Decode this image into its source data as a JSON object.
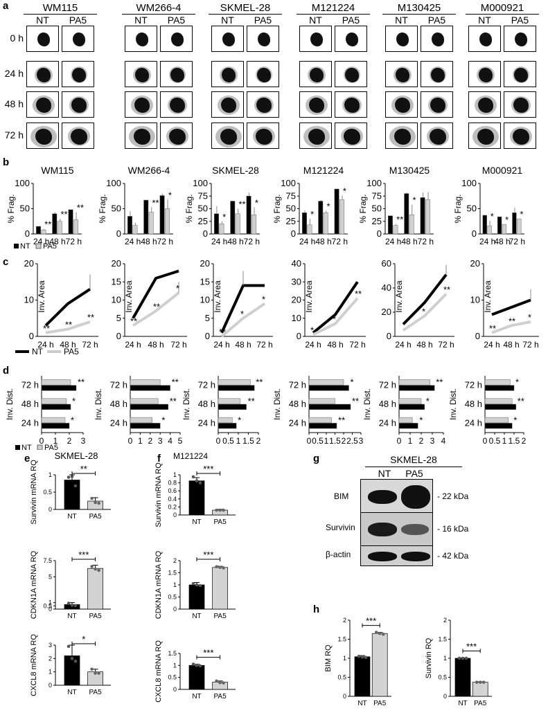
{
  "panels": {
    "a": "a",
    "b": "b",
    "c": "c",
    "d": "d",
    "e": "e",
    "f": "f",
    "g": "g",
    "h": "h"
  },
  "cell_lines": [
    "WM115",
    "WM266-4",
    "SKMEL-28",
    "M121224",
    "M130425",
    "M000921"
  ],
  "spheroid": {
    "cols": [
      "NT",
      "PA5"
    ],
    "rows": [
      "0 h",
      "24 h",
      "48 h",
      "72 h"
    ]
  },
  "frag": {
    "ylabel": "% Frag.",
    "categories": [
      "24 h",
      "48 h",
      "72 h"
    ],
    "legend": [
      "NT",
      "PA5"
    ]
  },
  "area": {
    "ylabel": "Inv. Area",
    "categories": [
      "24 h",
      "48 h",
      "72 h"
    ],
    "legend": [
      "NT",
      "PA5"
    ]
  },
  "dist": {
    "ylabel": "Inv. Dist.",
    "categories": [
      "72 h",
      "48 h",
      "24 h"
    ],
    "legend": [
      "NT",
      "PA5"
    ]
  },
  "e": {
    "title": "SKMEL-28",
    "ylabels": [
      "Survivin mRNA RQ",
      "CDKN1A mRNA RQ",
      "CXCL8 mRNA RQ"
    ]
  },
  "f": {
    "title": "M121224",
    "ylabels": [
      "Survivin mRNA RQ",
      "CDKN1A mRNA RQ",
      "CXCL8 mRNA RQ"
    ]
  },
  "g": {
    "title": "SKMEL-28",
    "cols": [
      "NT",
      "PA5"
    ],
    "rows": [
      {
        "name": "BIM",
        "kda": "- 22 kDa"
      },
      {
        "name": "Survivin",
        "kda": "- 16 kDa"
      },
      {
        "name": "β-actin",
        "kda": "- 42 kDa"
      }
    ]
  },
  "h": {
    "ylabels": [
      "BIM RQ",
      "Survivin RQ"
    ]
  },
  "chart_data": [
    {
      "id": "b-WM115",
      "type": "bar",
      "title": "WM115",
      "ylabel": "% Frag.",
      "categories": [
        "24 h",
        "48 h",
        "72 h"
      ],
      "ylim": [
        0,
        100
      ],
      "yticks": [
        0,
        50,
        100
      ],
      "series": [
        {
          "name": "NT",
          "values": [
            15,
            40,
            48
          ],
          "err": [
            0,
            3,
            0
          ]
        },
        {
          "name": "PA5",
          "values": [
            8,
            25,
            28
          ],
          "err": [
            2,
            5,
            15
          ]
        }
      ],
      "annotations": [
        "**",
        "**",
        "**"
      ]
    },
    {
      "id": "b-WM266-4",
      "type": "bar",
      "title": "WM266-4",
      "ylabel": "% Frag.",
      "categories": [
        "24 h",
        "48 h",
        "72 h"
      ],
      "ylim": [
        0,
        100
      ],
      "yticks": [
        0,
        50,
        100
      ],
      "series": [
        {
          "name": "NT",
          "values": [
            35,
            67,
            76
          ],
          "err": [
            10,
            0,
            4
          ]
        },
        {
          "name": "PA5",
          "values": [
            17,
            43,
            50
          ],
          "err": [
            5,
            10,
            18
          ]
        }
      ],
      "annotations": [
        "",
        "**",
        "*"
      ]
    },
    {
      "id": "b-SKMEL-28",
      "type": "bar",
      "title": "SKMEL-28",
      "ylabel": "% Frag.",
      "categories": [
        "24 h",
        "48 h",
        "72 h"
      ],
      "ylim": [
        0,
        100
      ],
      "yticks": [
        0,
        25,
        50,
        75,
        100
      ],
      "series": [
        {
          "name": "NT",
          "values": [
            40,
            65,
            75
          ],
          "err": [
            15,
            0,
            7
          ]
        },
        {
          "name": "PA5",
          "values": [
            20,
            40,
            38
          ],
          "err": [
            5,
            10,
            15
          ]
        }
      ],
      "annotations": [
        "*",
        "**",
        "*"
      ]
    },
    {
      "id": "b-M121224",
      "type": "bar",
      "title": "M121224",
      "ylabel": "% Frag.",
      "categories": [
        "24 h",
        "48 h",
        "72 h"
      ],
      "ylim": [
        0,
        100
      ],
      "yticks": [
        0,
        25,
        50,
        75,
        100
      ],
      "series": [
        {
          "name": "NT",
          "values": [
            42,
            65,
            89
          ],
          "err": [
            5,
            2,
            0
          ]
        },
        {
          "name": "PA5",
          "values": [
            18,
            42,
            68
          ],
          "err": [
            12,
            4,
            8
          ]
        }
      ],
      "annotations": [
        "*",
        "*",
        "*"
      ]
    },
    {
      "id": "b-M130425",
      "type": "bar",
      "title": "M130425",
      "ylabel": "% Frag.",
      "categories": [
        "24 h",
        "48 h",
        "72 h"
      ],
      "ylim": [
        0,
        100
      ],
      "yticks": [
        0,
        25,
        50,
        75,
        100
      ],
      "series": [
        {
          "name": "NT",
          "values": [
            36,
            80,
            72
          ],
          "err": [
            0,
            2,
            10
          ]
        },
        {
          "name": "PA5",
          "values": [
            17,
            38,
            68
          ],
          "err": [
            3,
            20,
            15
          ]
        }
      ],
      "annotations": [
        "**",
        "*",
        ""
      ]
    },
    {
      "id": "b-M000921",
      "type": "bar",
      "title": "M000921",
      "ylabel": "% Frag.",
      "categories": [
        "24 h",
        "48 h",
        "72 h"
      ],
      "ylim": [
        0,
        100
      ],
      "yticks": [
        0,
        50,
        100
      ],
      "series": [
        {
          "name": "NT",
          "values": [
            37,
            34,
            42
          ],
          "err": [
            0,
            0,
            10
          ]
        },
        {
          "name": "PA5",
          "values": [
            16,
            19,
            30
          ],
          "err": [
            10,
            0,
            0
          ]
        }
      ],
      "annotations": [
        "*",
        "*",
        "*"
      ]
    },
    {
      "id": "c-1",
      "type": "line",
      "ylabel": "Inv. Area",
      "categories": [
        "24 h",
        "48 h",
        "72 h"
      ],
      "ylim": [
        0,
        20
      ],
      "yticks": [
        0,
        10,
        20
      ],
      "series": [
        {
          "name": "NT",
          "values": [
            3,
            9,
            13
          ],
          "err": [
            0,
            0,
            4
          ]
        },
        {
          "name": "PA5",
          "values": [
            1,
            2,
            4
          ],
          "err": [
            0,
            0,
            0
          ]
        }
      ],
      "annotations": [
        "**",
        "**",
        "**"
      ]
    },
    {
      "id": "c-2",
      "type": "line",
      "ylabel": "Inv. Area",
      "categories": [
        "24 h",
        "48 h",
        "72 h"
      ],
      "ylim": [
        0,
        20
      ],
      "yticks": [
        0,
        5,
        10,
        15,
        20
      ],
      "series": [
        {
          "name": "NT",
          "values": [
            5,
            16,
            18
          ],
          "err": [
            0,
            0,
            0
          ]
        },
        {
          "name": "PA5",
          "values": [
            3,
            7,
            12
          ],
          "err": [
            0,
            0,
            3
          ]
        }
      ],
      "annotations": [
        "**",
        "**",
        "*"
      ]
    },
    {
      "id": "c-3",
      "type": "line",
      "ylabel": "Inv. Area",
      "categories": [
        "24 h",
        "48 h",
        "72 h"
      ],
      "ylim": [
        0,
        20
      ],
      "yticks": [
        0,
        5,
        10,
        15,
        20
      ],
      "series": [
        {
          "name": "NT",
          "values": [
            1,
            14,
            14
          ],
          "err": [
            0,
            4,
            0
          ]
        },
        {
          "name": "PA5",
          "values": [
            0,
            5,
            9
          ],
          "err": [
            0,
            0,
            0
          ]
        }
      ],
      "annotations": [
        "**",
        "*",
        "*"
      ]
    },
    {
      "id": "c-4",
      "type": "line",
      "ylabel": "Inv. Area",
      "categories": [
        "24 h",
        "48 h",
        "72 h"
      ],
      "ylim": [
        0,
        40
      ],
      "yticks": [
        0,
        10,
        20,
        30,
        40
      ],
      "series": [
        {
          "name": "NT",
          "values": [
            2,
            12,
            30
          ],
          "err": [
            0,
            0,
            0
          ]
        },
        {
          "name": "PA5",
          "values": [
            1,
            7,
            21
          ],
          "err": [
            0,
            0,
            0
          ]
        }
      ],
      "annotations": [
        "*",
        "*",
        "**"
      ]
    },
    {
      "id": "c-5",
      "type": "line",
      "ylabel": "Inv. Area",
      "categories": [
        "24 h",
        "48 h",
        "72 h"
      ],
      "ylim": [
        0,
        60
      ],
      "yticks": [
        0,
        20,
        40,
        60
      ],
      "series": [
        {
          "name": "NT",
          "values": [
            10,
            28,
            51
          ],
          "err": [
            0,
            0,
            8
          ]
        },
        {
          "name": "PA5",
          "values": [
            5,
            17,
            35
          ],
          "err": [
            0,
            0,
            0
          ]
        }
      ],
      "annotations": [
        "",
        "*",
        "**"
      ]
    },
    {
      "id": "c-6",
      "type": "line",
      "ylabel": "Inv. Area",
      "categories": [
        "24 h",
        "48 h",
        "72 h"
      ],
      "ylim": [
        0,
        20
      ],
      "yticks": [
        0,
        10,
        20
      ],
      "series": [
        {
          "name": "NT",
          "values": [
            6,
            8,
            10
          ],
          "err": [
            0,
            0,
            3
          ]
        },
        {
          "name": "PA5",
          "values": [
            1,
            3,
            4
          ],
          "err": [
            0,
            0,
            0
          ]
        }
      ],
      "annotations": [
        "**",
        "**",
        "*"
      ]
    },
    {
      "id": "d-1",
      "type": "bar",
      "orientation": "horizontal",
      "ylabel": "Inv. Dist.",
      "categories": [
        "72 h",
        "48 h",
        "24 h"
      ],
      "xlim": [
        0,
        3
      ],
      "xticks": [
        0,
        1,
        2,
        3
      ],
      "series": [
        {
          "name": "PA5",
          "values": [
            2.1,
            1.8,
            1.7
          ]
        },
        {
          "name": "NT",
          "values": [
            2.5,
            2.1,
            2.0
          ]
        }
      ],
      "annotations": [
        "**",
        "*",
        "*"
      ]
    },
    {
      "id": "d-2",
      "type": "bar",
      "orientation": "horizontal",
      "ylabel": "Inv. Dist.",
      "categories": [
        "72 h",
        "48 h",
        "24 h"
      ],
      "xlim": [
        0,
        5
      ],
      "xticks": [
        0,
        1,
        2,
        3,
        4,
        5
      ],
      "series": [
        {
          "name": "PA5",
          "values": [
            3.0,
            2.8,
            2.2
          ]
        },
        {
          "name": "NT",
          "values": [
            4.0,
            3.8,
            3.0
          ]
        }
      ],
      "annotations": [
        "**",
        "**",
        "*"
      ]
    },
    {
      "id": "d-3",
      "type": "bar",
      "orientation": "horizontal",
      "ylabel": "Inv. Dist.",
      "categories": [
        "72 h",
        "48 h",
        "24 h"
      ],
      "xlim": [
        0,
        2
      ],
      "xticks": [
        0,
        0.5,
        1,
        1.5,
        2
      ],
      "series": [
        {
          "name": "PA5",
          "values": [
            1.6,
            1.1,
            0.7
          ]
        },
        {
          "name": "NT",
          "values": [
            1.8,
            1.4,
            0.9
          ]
        }
      ],
      "annotations": [
        "**",
        "**",
        "*"
      ]
    },
    {
      "id": "d-4",
      "type": "bar",
      "orientation": "horizontal",
      "ylabel": "Inv. Dist.",
      "categories": [
        "72 h",
        "48 h",
        "24 h"
      ],
      "xlim": [
        0,
        3
      ],
      "xticks": [
        0,
        0.5,
        1,
        1.5,
        2,
        2.5,
        3
      ],
      "series": [
        {
          "name": "PA5",
          "values": [
            2.0,
            1.5,
            1.3
          ]
        },
        {
          "name": "NT",
          "values": [
            2.3,
            2.4,
            1.6
          ]
        }
      ],
      "annotations": [
        "*",
        "**",
        "**"
      ]
    },
    {
      "id": "d-5",
      "type": "bar",
      "orientation": "horizontal",
      "ylabel": "Inv. Dist.",
      "categories": [
        "72 h",
        "48 h",
        "24 h"
      ],
      "xlim": [
        0,
        4
      ],
      "xticks": [
        0,
        1,
        2,
        3,
        4
      ],
      "series": [
        {
          "name": "PA5",
          "values": [
            2.8,
            2.0,
            1.2
          ]
        },
        {
          "name": "NT",
          "values": [
            3.2,
            2.3,
            1.7
          ]
        }
      ],
      "annotations": [
        "**",
        "*",
        "*"
      ]
    },
    {
      "id": "d-6",
      "type": "bar",
      "orientation": "horizontal",
      "ylabel": "Inv. Dist.",
      "categories": [
        "72 h",
        "48 h",
        "24 h"
      ],
      "xlim": [
        0,
        2
      ],
      "xticks": [
        0,
        0.5,
        1,
        1.5,
        2
      ],
      "series": [
        {
          "name": "PA5",
          "values": [
            1.3,
            1.4,
            1.2
          ]
        },
        {
          "name": "NT",
          "values": [
            1.5,
            1.6,
            1.4
          ]
        }
      ],
      "annotations": [
        "*",
        "**",
        "*"
      ]
    },
    {
      "id": "e-survivin",
      "type": "bar",
      "ylabel": "Survivin mRNA RQ",
      "categories": [
        "NT",
        "PA5"
      ],
      "ylim": [
        0,
        1.0
      ],
      "yticks": [
        0,
        0.5,
        1
      ],
      "values": [
        0.85,
        0.24
      ],
      "err": [
        0.15,
        0.1
      ],
      "points": [
        [
          0.93,
          0.95,
          0.68
        ],
        [
          0.32,
          0.2,
          0.18
        ]
      ],
      "annotation": "**"
    },
    {
      "id": "e-cdkn1a",
      "type": "bar",
      "ylabel": "CDKN1A mRNA RQ",
      "categories": [
        "NT",
        "PA5"
      ],
      "ylim": [
        0,
        7.5
      ],
      "yticks": [
        0,
        0.5,
        1,
        5,
        7.5
      ],
      "axis_break": true,
      "values": [
        0.7,
        6.3
      ],
      "err": [
        0.3,
        0.5
      ],
      "points": [
        [
          0.9,
          0.6,
          0.55
        ],
        [
          6.6,
          6.2,
          6.0
        ]
      ],
      "annotation": "***"
    },
    {
      "id": "e-cxcl8",
      "type": "bar",
      "ylabel": "CXCL8 mRNA RQ",
      "categories": [
        "NT",
        "PA5"
      ],
      "ylim": [
        0,
        3
      ],
      "yticks": [
        0,
        1,
        2,
        3
      ],
      "values": [
        2.2,
        1.0
      ],
      "err": [
        0.8,
        0.2
      ],
      "points": [
        [
          2.9,
          2.0,
          1.8
        ],
        [
          1.2,
          0.9,
          0.9
        ]
      ],
      "annotation": "*"
    },
    {
      "id": "f-survivin",
      "type": "bar",
      "ylabel": "Survivin mRNA RQ",
      "categories": [
        "NT",
        "PA5"
      ],
      "ylim": [
        0,
        1.0
      ],
      "yticks": [
        0,
        0.2,
        0.4,
        0.6,
        0.8,
        1.0
      ],
      "values": [
        0.85,
        0.12
      ],
      "err": [
        0.08,
        0.02
      ],
      "points": [
        [
          0.95,
          0.85,
          0.8
        ],
        [
          0.12,
          0.12,
          0.12
        ]
      ],
      "annotation": "***"
    },
    {
      "id": "f-cdkn1a",
      "type": "bar",
      "ylabel": "CDKN1A mRNA RQ",
      "categories": [
        "NT",
        "PA5"
      ],
      "ylim": [
        0,
        2.0
      ],
      "yticks": [
        0,
        0.5,
        1.0,
        1.5,
        2.0
      ],
      "values": [
        1.0,
        1.72
      ],
      "err": [
        0.1,
        0.05
      ],
      "points": [
        [
          1.05,
          1.0,
          0.97
        ],
        [
          1.75,
          1.72,
          1.7
        ]
      ],
      "annotation": "***"
    },
    {
      "id": "f-cxcl8",
      "type": "bar",
      "ylabel": "CXCL8 mRNA RQ",
      "categories": [
        "NT",
        "PA5"
      ],
      "ylim": [
        0,
        1.5
      ],
      "yticks": [
        0,
        0.5,
        1.0,
        1.5
      ],
      "values": [
        1.0,
        0.3
      ],
      "err": [
        0.05,
        0.05
      ],
      "points": [
        [
          1.05,
          1.0,
          0.98
        ],
        [
          0.35,
          0.28,
          0.27
        ]
      ],
      "annotation": "***"
    },
    {
      "id": "h-bim",
      "type": "bar",
      "ylabel": "BIM RQ",
      "categories": [
        "NT",
        "PA5"
      ],
      "ylim": [
        0,
        2.0
      ],
      "yticks": [
        0,
        0.5,
        1.0,
        1.5,
        2.0
      ],
      "values": [
        1.04,
        1.65
      ],
      "err": [
        0.03,
        0.03
      ],
      "points": [
        [
          1.05,
          1.03,
          1.02
        ],
        [
          1.68,
          1.65,
          1.63
        ]
      ],
      "annotation": "***"
    },
    {
      "id": "h-survivin",
      "type": "bar",
      "ylabel": "Survivin RQ",
      "categories": [
        "NT",
        "PA5"
      ],
      "ylim": [
        0,
        2.0
      ],
      "yticks": [
        0,
        0.5,
        1.0,
        1.5,
        2.0
      ],
      "values": [
        1.0,
        0.37
      ],
      "err": [
        0.01,
        0.01
      ],
      "points": [
        [
          1.0,
          1.0,
          1.0
        ],
        [
          0.37,
          0.37,
          0.37
        ]
      ],
      "annotation": "***"
    }
  ]
}
